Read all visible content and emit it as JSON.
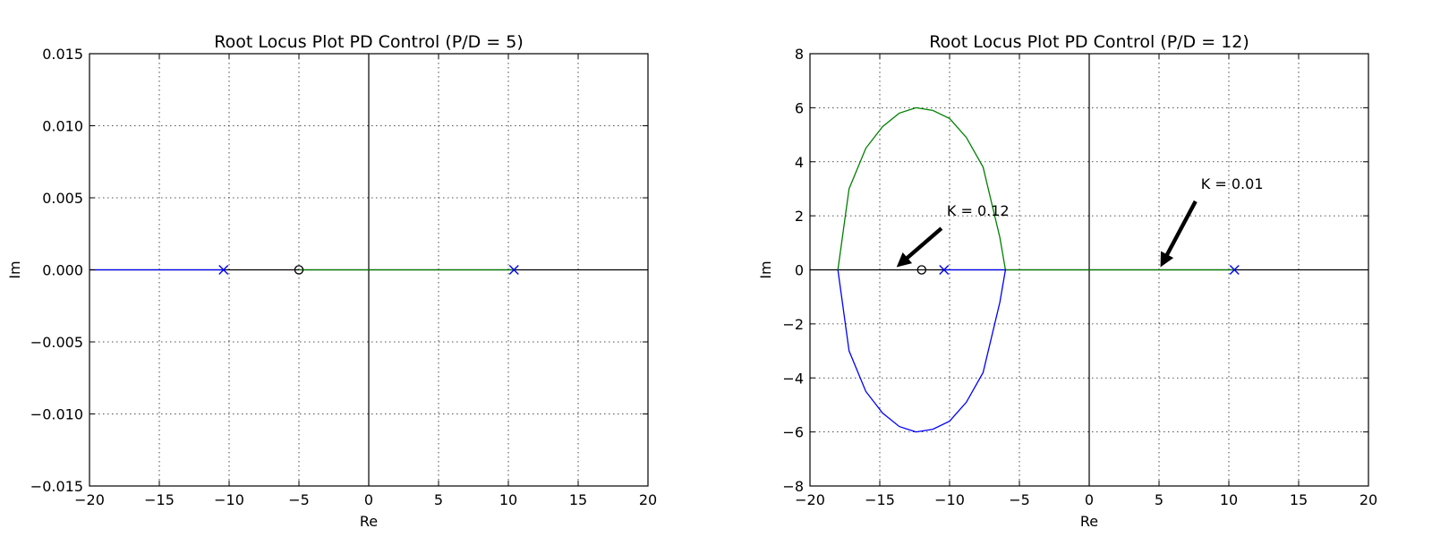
{
  "chart_data": [
    {
      "type": "line",
      "title": "Root Locus Plot PD Control (P/D = 5)",
      "xlabel": "Re",
      "ylabel": "Im",
      "xlim": [
        -20,
        20
      ],
      "ylim": [
        -0.015,
        0.015
      ],
      "grid": true,
      "xticks": [
        -20,
        -15,
        -10,
        -5,
        0,
        5,
        10,
        15,
        20
      ],
      "xtick_labels": [
        "−20",
        "−15",
        "−10",
        "−5",
        "0",
        "5",
        "10",
        "15",
        "20"
      ],
      "yticks": [
        -0.015,
        -0.01,
        -0.005,
        0.0,
        0.005,
        0.01,
        0.015
      ],
      "ytick_labels": [
        "−0.015",
        "−0.010",
        "−0.005",
        "0.000",
        "0.005",
        "0.010",
        "0.015"
      ],
      "series": [
        {
          "color": "#0000ff",
          "x": [
            -20,
            -10.4
          ],
          "y": [
            0,
            0
          ]
        },
        {
          "color": "#008000",
          "x": [
            -5,
            10.4
          ],
          "y": [
            0,
            0
          ]
        }
      ],
      "poles": [
        [
          -10.4,
          0
        ],
        [
          10.4,
          0
        ]
      ],
      "zeros": [
        [
          -5,
          0
        ]
      ],
      "annotations": []
    },
    {
      "type": "line",
      "title": "Root Locus Plot PD Control (P/D = 12)",
      "xlabel": "Re",
      "ylabel": "Im",
      "xlim": [
        -20,
        20
      ],
      "ylim": [
        -8,
        8
      ],
      "grid": true,
      "xticks": [
        -20,
        -15,
        -10,
        -5,
        0,
        5,
        10,
        15,
        20
      ],
      "xtick_labels": [
        "−20",
        "−15",
        "−10",
        "−5",
        "0",
        "5",
        "10",
        "15",
        "20"
      ],
      "yticks": [
        -8,
        -6,
        -4,
        -2,
        0,
        2,
        4,
        6,
        8
      ],
      "ytick_labels": [
        "−8",
        "−6",
        "−4",
        "−2",
        "0",
        "2",
        "4",
        "6",
        "8"
      ],
      "series": [
        {
          "color": "#008000",
          "x": [
            -18.0,
            -17.2,
            -16.0,
            -14.8,
            -13.6,
            -12.4,
            -11.2,
            -10.0,
            -8.8,
            -7.6,
            -6.4,
            -6.0,
            -6.0,
            10.4
          ],
          "y": [
            0.0,
            3.0,
            4.5,
            5.3,
            5.8,
            6.0,
            5.9,
            5.6,
            4.9,
            3.8,
            1.2,
            0.0,
            0.0,
            0.0
          ]
        },
        {
          "color": "#0000ff",
          "x": [
            -18.0,
            -17.2,
            -16.0,
            -14.8,
            -13.6,
            -12.4,
            -11.2,
            -10.0,
            -8.8,
            -7.6,
            -6.4,
            -6.0,
            -6.0,
            -10.4
          ],
          "y": [
            0.0,
            -3.0,
            -4.5,
            -5.3,
            -5.8,
            -6.0,
            -5.9,
            -5.6,
            -4.9,
            -3.8,
            -1.2,
            0.0,
            0.0,
            0.0
          ]
        }
      ],
      "poles": [
        [
          -10.4,
          0
        ],
        [
          10.4,
          0
        ]
      ],
      "zeros": [
        [
          -12,
          0
        ]
      ],
      "annotations": [
        {
          "text": "K = 0.12",
          "xy": [
            -13.8,
            0.1
          ],
          "xytext": [
            -10.2,
            2.0
          ]
        },
        {
          "text": "K = 0.01",
          "xy": [
            5.1,
            0.1
          ],
          "xytext": [
            8.0,
            3.0
          ]
        }
      ]
    }
  ]
}
